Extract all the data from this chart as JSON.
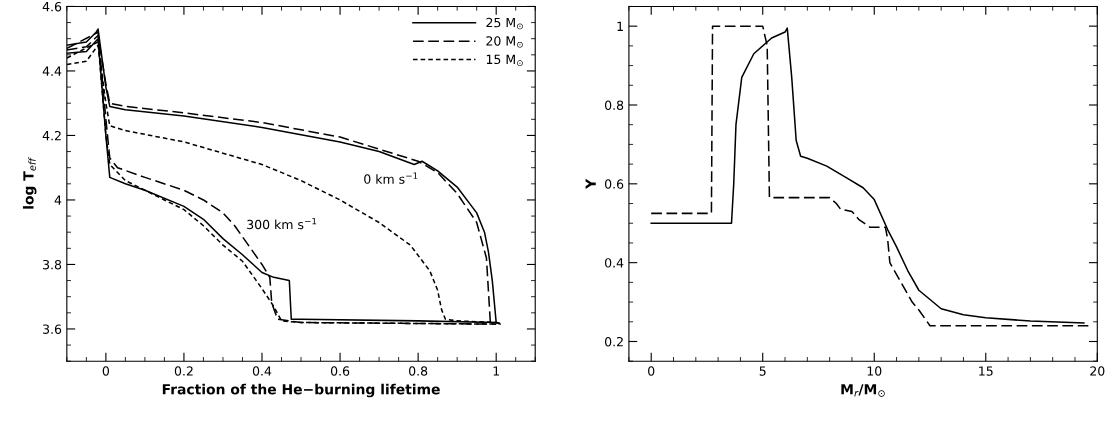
{
  "chart_data": [
    {
      "type": "line",
      "xlabel": "Fraction of the He−burning lifetime",
      "ylabel": "log T$_{eff}$",
      "xlim": [
        -0.1,
        1.1
      ],
      "ylim": [
        3.5,
        4.6
      ],
      "xticks": [
        0,
        0.2,
        0.4,
        0.6,
        0.8,
        1
      ],
      "yticks": [
        3.6,
        3.8,
        4,
        4.2,
        4.4,
        4.6
      ],
      "grid": false,
      "legend": "top right",
      "marker": "none",
      "annotations": [
        "0 km s$^{−1}$",
        "300 km s$^{−1}$"
      ],
      "series": [
        {
          "name": "25 M$_{⊙}$",
          "color": "#000000",
          "line_style": "solid",
          "x": [
            -0.1,
            -0.05,
            -0.025,
            -0.02,
            0.0,
            0.01,
            0.05,
            0.2,
            0.4,
            0.6,
            0.7,
            0.79,
            0.81,
            0.85,
            0.9,
            0.95,
            0.97,
            0.98,
            0.99,
            1.0,
            1.01
          ],
          "values": [
            4.48,
            4.49,
            4.52,
            4.53,
            4.35,
            4.29,
            4.28,
            4.26,
            4.225,
            4.18,
            4.15,
            4.11,
            4.12,
            4.09,
            4.04,
            3.96,
            3.9,
            3.84,
            3.75,
            3.62,
            3.615
          ]
        },
        {
          "name": "20 M$_{⊙}$",
          "color": "#000000",
          "line_style": "dashed",
          "x": [
            -0.1,
            -0.05,
            -0.02,
            0.0,
            0.01,
            0.05,
            0.2,
            0.4,
            0.6,
            0.8,
            0.85,
            0.9,
            0.95,
            0.975,
            0.985,
            1.0,
            1.01
          ],
          "values": [
            4.465,
            4.475,
            4.51,
            4.36,
            4.3,
            4.29,
            4.27,
            4.24,
            4.195,
            4.12,
            4.085,
            4.02,
            3.93,
            3.82,
            3.62,
            3.62,
            3.618
          ]
        },
        {
          "name": "15 M$_{⊙}$",
          "color": "#000000",
          "line_style": "dotted",
          "x": [
            -0.1,
            -0.05,
            -0.02,
            0.0,
            0.01,
            0.05,
            0.2,
            0.4,
            0.5,
            0.6,
            0.7,
            0.78,
            0.83,
            0.85,
            0.86,
            0.87,
            0.9,
            1.0,
            1.01
          ],
          "values": [
            4.42,
            4.43,
            4.48,
            4.3,
            4.23,
            4.215,
            4.18,
            4.11,
            4.06,
            4.0,
            3.93,
            3.86,
            3.78,
            3.72,
            3.66,
            3.63,
            3.625,
            3.62,
            3.615
          ]
        },
        {
          "color": "#000000",
          "line_style": "solid",
          "x": [
            -0.1,
            -0.05,
            -0.02,
            0.0,
            0.01,
            0.05,
            0.1,
            0.2,
            0.25,
            0.3,
            0.35,
            0.4,
            0.43,
            0.47,
            0.475,
            0.5,
            0.8,
            1.0
          ],
          "values": [
            4.455,
            4.46,
            4.5,
            4.2,
            4.07,
            4.05,
            4.03,
            3.98,
            3.94,
            3.88,
            3.83,
            3.775,
            3.76,
            3.75,
            3.63,
            3.63,
            3.625,
            3.62
          ]
        },
        {
          "color": "#000000",
          "line_style": "dashed",
          "x": [
            -0.1,
            -0.02,
            0.0,
            0.01,
            0.03,
            0.1,
            0.2,
            0.25,
            0.3,
            0.33,
            0.4,
            0.42,
            0.425,
            0.44,
            0.5,
            1.0
          ],
          "values": [
            4.47,
            4.52,
            4.25,
            4.13,
            4.1,
            4.07,
            4.03,
            4.0,
            3.96,
            3.92,
            3.8,
            3.76,
            3.68,
            3.63,
            3.62,
            3.615
          ]
        },
        {
          "color": "#000000",
          "line_style": "dotted",
          "x": [
            -0.1,
            -0.02,
            0.0,
            0.01,
            0.05,
            0.1,
            0.2,
            0.25,
            0.3,
            0.35,
            0.4,
            0.43,
            0.45,
            0.5,
            1.0
          ],
          "values": [
            4.44,
            4.49,
            4.2,
            4.11,
            4.06,
            4.03,
            3.97,
            3.92,
            3.86,
            3.81,
            3.725,
            3.67,
            3.625,
            3.62,
            3.615
          ]
        }
      ]
    },
    {
      "type": "line",
      "xlabel": "M$_{r}$/M$_{⊙}$",
      "ylabel": "Y",
      "xlim": [
        -1,
        20
      ],
      "ylim": [
        0.15,
        1.05
      ],
      "xticks": [
        0,
        5,
        10,
        15,
        20
      ],
      "yticks": [
        0.2,
        0.4,
        0.6,
        0.8,
        1
      ],
      "grid": false,
      "marker": "none",
      "series": [
        {
          "color": "#000000",
          "line_style": "solid",
          "x": [
            0,
            3.6,
            3.7,
            3.8,
            4.06,
            4.6,
            5.4,
            6.0,
            6.1,
            6.3,
            6.5,
            6.7,
            7.0,
            7.87,
            8.8,
            9.5,
            10.0,
            10.6,
            11.0,
            11.5,
            12.0,
            13.0,
            14.0,
            15.0,
            17.0,
            19.4
          ],
          "values": [
            0.5,
            0.5,
            0.6,
            0.75,
            0.87,
            0.93,
            0.97,
            0.985,
            0.995,
            0.87,
            0.71,
            0.67,
            0.665,
            0.645,
            0.614,
            0.59,
            0.56,
            0.484,
            0.44,
            0.38,
            0.33,
            0.283,
            0.268,
            0.26,
            0.252,
            0.247
          ]
        },
        {
          "color": "#000000",
          "line_style": "dashed",
          "x": [
            0,
            2.7,
            2.75,
            5.0,
            5.2,
            5.3,
            8.0,
            8.3,
            8.5,
            9.0,
            9.3,
            9.8,
            10.5,
            10.6,
            10.7,
            11.2,
            11.7,
            12.0,
            12.5,
            19.6
          ],
          "values": [
            0.525,
            0.525,
            1.0,
            1.0,
            0.95,
            0.565,
            0.565,
            0.55,
            0.535,
            0.53,
            0.51,
            0.49,
            0.49,
            0.46,
            0.4,
            0.35,
            0.3,
            0.28,
            0.24,
            0.24
          ]
        }
      ]
    }
  ]
}
